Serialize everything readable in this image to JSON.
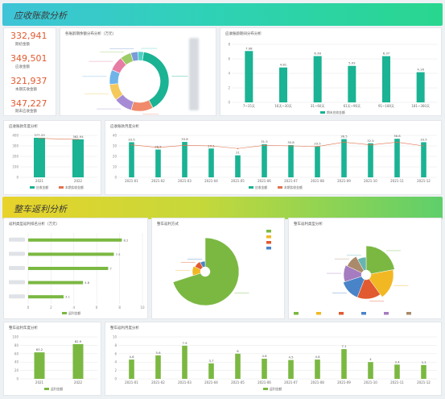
{
  "colors": {
    "teal": "#1ab394",
    "green": "#7bb842",
    "orange": "#e15a30",
    "grid": "#e6e6e6"
  },
  "section1": {
    "title": "应收账款分析"
  },
  "section2": {
    "title": "整车返利分析"
  },
  "kpis": [
    {
      "value": "332,941",
      "label": "期初金额"
    },
    {
      "value": "349,501",
      "label": "应收金额"
    },
    {
      "value": "321,937",
      "label": "本期实收金额"
    },
    {
      "value": "347,227",
      "label": "期末应收金额"
    }
  ],
  "donut_card": {
    "title": "各账龄期余额分布分析（万元）"
  },
  "aging_card": {
    "title": "应收账龄期间分布分析"
  },
  "yearly_card": {
    "title": "应收账款年度分析"
  },
  "monthly_card": {
    "title": "应收账款月度分析"
  },
  "rebate_bar_card": {
    "title": "返利类型返利排名分析（万元）"
  },
  "rebate_pie1_card": {
    "title": "整车返利方式"
  },
  "rebate_pie2_card": {
    "title": "整车返利类型分析"
  },
  "rebate_year_card": {
    "title": "整车返利年度分析"
  },
  "rebate_month_card": {
    "title": "整车返利月度分析"
  },
  "chart_data": [
    {
      "type": "pie",
      "categories": [
        "",
        "",
        "",
        "",
        "",
        "",
        "",
        "",
        ""
      ],
      "values": [
        40,
        12,
        10,
        9,
        8,
        8,
        6,
        4,
        3
      ]
    },
    {
      "type": "bar",
      "categories": [
        "7~15天",
        "16天~30天",
        "31~60天",
        "61天~90天",
        "91~180天",
        "181~360天"
      ],
      "values": [
        7.08,
        4.81,
        6.38,
        5.03,
        6.37,
        4.16
      ],
      "ylim": [
        0,
        8
      ],
      "legend": [
        "期末应收金额"
      ]
    },
    {
      "type": "bar",
      "categories": [
        "2021",
        "2022"
      ],
      "values": [
        377.33,
        362.94
      ],
      "ylim": [
        0,
        400
      ],
      "legend": [
        "应收金额",
        "本期实收金额"
      ]
    },
    {
      "type": "bar",
      "categories": [
        "2021-01",
        "2021-02",
        "2021-03",
        "2021-04",
        "2021-05",
        "2021-06",
        "2021-07",
        "2021-08",
        "2021-09",
        "2021-10",
        "2021-11",
        "2021-12"
      ],
      "series": [
        {
          "name": "应收金额",
          "values": [
            33.5,
            26.5,
            33.8,
            27.5,
            21.0,
            31.5,
            30.8,
            29.5,
            36.5,
            32.5,
            36.8,
            33.5
          ]
        },
        {
          "name": "本期实收金额",
          "values": [
            31.0,
            28.5,
            30.5,
            30.0,
            27.5,
            30.5,
            30.0,
            29.5,
            33.5,
            31.0,
            33.5,
            30.0
          ]
        }
      ],
      "ylim": [
        0,
        40
      ]
    },
    {
      "type": "bar",
      "orientation": "horizontal",
      "categories": [
        "",
        "",
        "",
        "",
        ""
      ],
      "values": [
        8.2,
        7.5,
        7.0,
        4.8,
        3.1
      ],
      "xlim": [
        0,
        10
      ],
      "legend": [
        "返利金额"
      ]
    },
    {
      "type": "pie",
      "categories": [
        "",
        "",
        "",
        ""
      ],
      "values": [
        70,
        12,
        10,
        8
      ]
    },
    {
      "type": "pie",
      "categories": [
        "",
        "",
        "",
        "",
        "",
        "",
        ""
      ],
      "values": [
        22,
        18,
        16,
        14,
        12,
        10,
        8
      ]
    },
    {
      "type": "bar",
      "categories": [
        "2021",
        "2022"
      ],
      "values": [
        63.2,
        82.9
      ],
      "ylim": [
        0,
        100
      ],
      "legend": [
        "返利金额"
      ]
    },
    {
      "type": "bar",
      "categories": [
        "2021-01",
        "2021-02",
        "2021-03",
        "2021-04",
        "2021-05",
        "2021-06",
        "2021-07",
        "2021-08",
        "2021-09",
        "2021-10",
        "2021-11",
        "2021-12"
      ],
      "values": [
        4.6,
        5.6,
        7.9,
        3.7,
        6.0,
        4.8,
        4.5,
        4.6,
        7.1,
        4.0,
        3.4,
        3.3
      ],
      "ylim": [
        0,
        10
      ],
      "legend": [
        "返利金额"
      ]
    }
  ]
}
